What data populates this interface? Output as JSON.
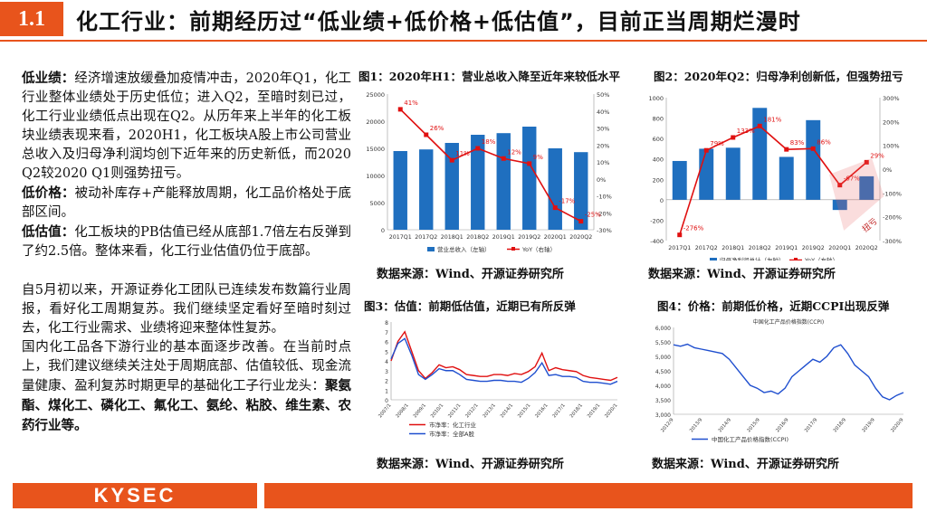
{
  "header": {
    "section_number": "1.1",
    "title": "化工行业：前期经历过“低业绩+低价格+低估值”，目前正当周期烂漫时"
  },
  "left_text": {
    "p1_label": "低业绩：",
    "p1_body": "经济增速放缓叠加疫情冲击，2020年Q1，化工行业整体业绩处于历史低位；进入Q2，至暗时刻已过，化工行业业绩低点出现在Q2。从历年来上半年的化工板块业绩表现来看，2020H1，化工板块A股上市公司营业总收入及归母净利润均创下近年来的历史新低，而2020 Q2较2020 Q1则强势扭亏。",
    "p2_label": "低价格：",
    "p2_body": "被动补库存+产能释放周期，化工品价格处于底部区间。",
    "p3_label": "低估值：",
    "p3_body": "化工板块的PB估值已经从底部1.7倍左右反弹到了约2.5倍。整体来看，化工行业估值仍位于底部。",
    "p4": "自5月初以来，开源证券化工团队已连续发布数篇行业周报，看好化工周期复苏。我们继续坚定看好至暗时刻过去，化工行业需求、业绩将迎来整体性复苏。",
    "p5_body": "国内化工品各下游行业的基本面逐步改善。在当前时点上，我们建议继续关注处于周期底部、估值较低、现金流量健康、盈利复苏时期更早的基础化工子行业龙头：",
    "p5_bold": "聚氨酯、煤化工、磷化工、氟化工、氨纶、粘胶、维生素、农药行业等。"
  },
  "fig1": {
    "title": "图1：2020年H1：营业总收入降至近年来较低水平",
    "source": "数据来源：Wind、开源证券研究所"
  },
  "fig2": {
    "title": "图2：2020年Q2：归母净利创新低，但强势扭亏",
    "source": "数据来源：Wind、开源证券研究所",
    "annotation": "扭亏"
  },
  "fig3": {
    "title": "图3：估值：前期低估值，近期已有所反弹",
    "source": "数据来源：Wind、开源证券研究所"
  },
  "fig4": {
    "title": "图4：价格：前期低价格，近期CCPI出现反弹",
    "source": "数据来源：Wind、开源证券研究所"
  },
  "footer": {
    "logo": "KYSEC"
  },
  "colors": {
    "accent": "#e8541c",
    "bar_blue": "#1f6fbf",
    "line_red": "#e01010"
  },
  "chart_data": [
    {
      "type": "bar",
      "id": "fig1",
      "categories": [
        "2017Q1",
        "2017Q2",
        "2018Q1",
        "2018Q2",
        "2019Q1",
        "2019Q2",
        "2020Q1",
        "2020Q2"
      ],
      "series": [
        {
          "name": "营业总收入（左轴）",
          "type": "bar",
          "axis": "left",
          "values": [
            14500,
            14800,
            16000,
            17500,
            17800,
            19000,
            15000,
            14300
          ]
        },
        {
          "name": "YoY（右轴）",
          "type": "line",
          "axis": "right",
          "values": [
            41,
            26,
            11,
            18,
            12,
            9,
            -17,
            -25
          ],
          "labels": [
            "41%",
            "26%",
            "11%",
            "18%",
            "12%",
            "9%",
            "-17%",
            "-25%"
          ]
        }
      ],
      "ylim": [
        0,
        25000
      ],
      "y_ticks": [
        "0",
        "5000",
        "10000",
        "15000",
        "20000",
        "25000"
      ],
      "y2lim": [
        -30,
        50
      ],
      "y2_ticks": [
        "-30%",
        "-20%",
        "-10%",
        "0%",
        "10%",
        "20%",
        "30%",
        "40%",
        "50%"
      ],
      "legend_position": "bottom"
    },
    {
      "type": "bar",
      "id": "fig2",
      "categories": [
        "2017Q1",
        "2017Q2",
        "2018Q1",
        "2018Q2",
        "2019Q1",
        "2019Q2",
        "2020Q1",
        "2020Q2"
      ],
      "series": [
        {
          "name": "归母净利润总计（左轴）",
          "type": "bar",
          "axis": "left",
          "values": [
            380,
            500,
            510,
            900,
            420,
            780,
            -100,
            230
          ]
        },
        {
          "name": "YoY（右轴）",
          "type": "line",
          "axis": "right",
          "values": [
            -276,
            79,
            133,
            181,
            83,
            86,
            -67,
            29
          ],
          "labels": [
            "-276%",
            "79%",
            "133%",
            "181%",
            "83%",
            "86%",
            "-67%",
            "29%"
          ]
        }
      ],
      "ylim": [
        -400,
        1000
      ],
      "y_ticks": [
        "-400",
        "-200",
        "0",
        "200",
        "400",
        "600",
        "800",
        "1000"
      ],
      "y2lim": [
        -300,
        300
      ],
      "y2_ticks": [
        "-300%",
        "-200%",
        "-100%",
        "0%",
        "100%",
        "200%",
        "300%"
      ],
      "legend_position": "bottom"
    },
    {
      "type": "line",
      "id": "fig3",
      "x_ticks": [
        "2007/1",
        "2008/1",
        "2009/1",
        "2010/1",
        "2011/1",
        "2012/1",
        "2013/1",
        "2014/1",
        "2015/1",
        "2016/1",
        "2017/1",
        "2018/1",
        "2019/1",
        "2020/1"
      ],
      "ylim": [
        0,
        8
      ],
      "y_ticks": [
        "0",
        "1",
        "2",
        "3",
        "4",
        "5",
        "6",
        "7",
        "8"
      ],
      "series": [
        {
          "name": "市净率：化工行业",
          "color": "#e01010",
          "values": [
            4.0,
            6.0,
            7.0,
            5.0,
            3.0,
            2.2,
            2.8,
            3.6,
            3.3,
            3.4,
            3.1,
            2.6,
            2.5,
            2.4,
            2.4,
            2.6,
            2.6,
            2.5,
            2.7,
            2.6,
            2.9,
            3.4,
            4.8,
            3.0,
            3.3,
            3.1,
            3.0,
            2.9,
            2.5,
            2.3,
            2.2,
            2.1,
            2.0,
            2.3
          ]
        },
        {
          "name": "市净率：全部A股",
          "color": "#1f4fcf",
          "values": [
            4.2,
            5.8,
            6.3,
            4.6,
            2.6,
            2.1,
            2.6,
            3.2,
            3.0,
            3.0,
            2.6,
            2.1,
            2.0,
            1.9,
            1.9,
            2.0,
            2.0,
            1.9,
            1.9,
            1.8,
            2.2,
            2.8,
            3.8,
            2.5,
            2.6,
            2.4,
            2.4,
            2.3,
            1.9,
            1.8,
            1.8,
            1.7,
            1.6,
            1.9
          ]
        }
      ],
      "legend_position": "bottom"
    },
    {
      "type": "line",
      "id": "fig4",
      "title": "中国化工产品价格指数(CCPI)",
      "x_ticks": [
        "2012/9",
        "2013/9",
        "2014/9",
        "2015/9",
        "2016/9",
        "2017/9",
        "2018/9",
        "2019/9",
        "2020/9"
      ],
      "ylim": [
        3000,
        6000
      ],
      "y_ticks": [
        "3,000",
        "3,500",
        "4,000",
        "4,500",
        "5,000",
        "5,500",
        "6,000"
      ],
      "series": [
        {
          "name": "中国化工产品价格指数(CCPI)",
          "color": "#1f4fcf",
          "values": [
            5400,
            5350,
            5420,
            5300,
            5250,
            5200,
            5150,
            5100,
            4900,
            4600,
            4300,
            4000,
            3900,
            3750,
            3800,
            3700,
            3900,
            4300,
            4500,
            4700,
            4900,
            4800,
            5000,
            5300,
            5400,
            5100,
            4700,
            4500,
            4300,
            3900,
            3600,
            3500,
            3650,
            3750
          ]
        }
      ],
      "legend_position": "bottom"
    }
  ]
}
